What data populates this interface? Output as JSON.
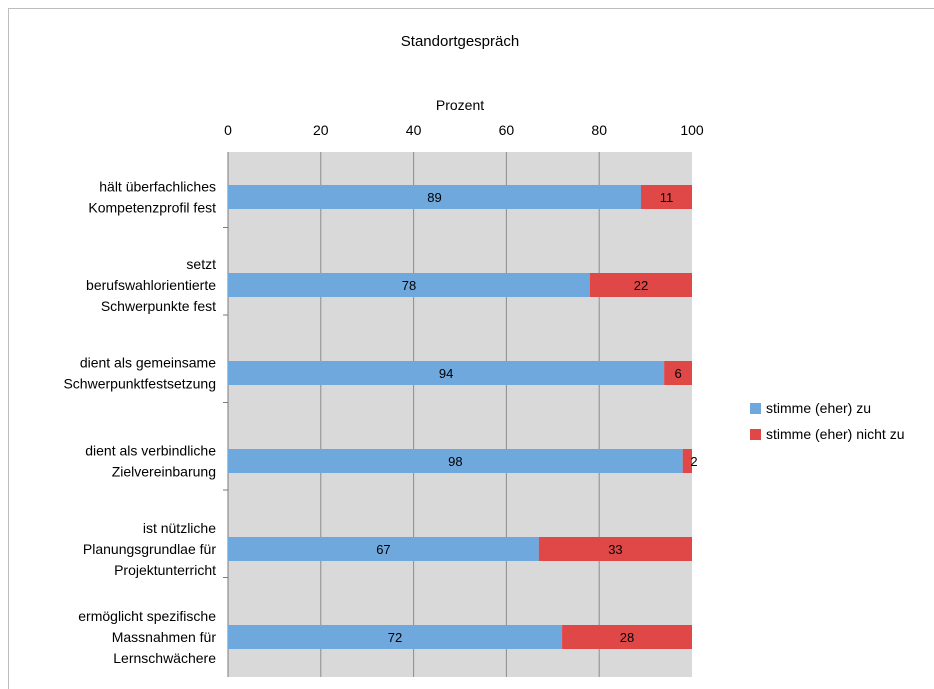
{
  "chart_data": {
    "type": "bar",
    "orientation": "horizontal",
    "stacked": true,
    "title": "Standortgespräch",
    "xlabel": "Prozent",
    "xlim": [
      0,
      100
    ],
    "xticks": [
      "0",
      "20",
      "40",
      "60",
      "80",
      "100"
    ],
    "grid": true,
    "legend": "right",
    "categories": [
      [
        "hält überfachliches",
        "Kompetenzprofil fest"
      ],
      [
        "setzt",
        "berufswahlorientierte",
        "Schwerpunkte fest"
      ],
      [
        "dient als gemeinsame",
        "Schwerpunktfestsetzung"
      ],
      [
        "dient als verbindliche",
        "Zielvereinbarung"
      ],
      [
        "ist nützliche",
        "Planungsgrundlae für",
        "Projektunterricht"
      ],
      [
        "ermöglicht spezifische",
        "Massnahmen für",
        "Lernschwächere"
      ]
    ],
    "series": [
      {
        "name": "stimme (eher) zu",
        "color": "#6fa8dc",
        "values": [
          89,
          78,
          94,
          98,
          67,
          72
        ]
      },
      {
        "name": "stimme (eher) nicht zu",
        "color": "#e04848",
        "values": [
          11,
          22,
          6,
          2,
          33,
          28
        ]
      }
    ]
  }
}
